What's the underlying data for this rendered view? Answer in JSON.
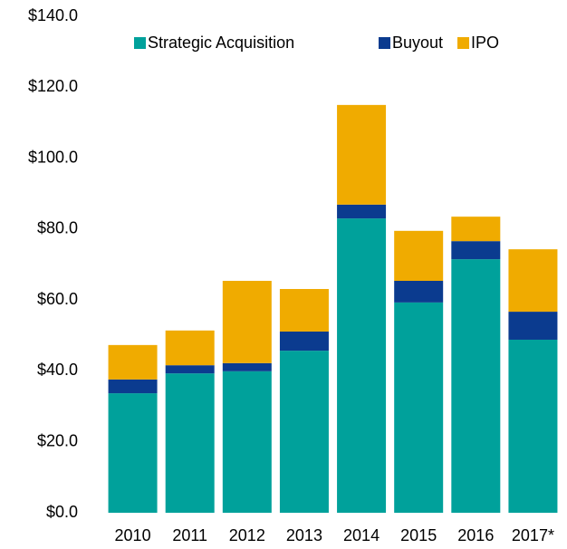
{
  "chart_data": {
    "type": "stacked_bar",
    "categories": [
      "2010",
      "2011",
      "2012",
      "2013",
      "2014",
      "2015",
      "2016",
      "2017*"
    ],
    "series": [
      {
        "name": "Strategic Acquisition",
        "color": "#00a19b",
        "values": [
          33.7,
          39.3,
          39.9,
          45.7,
          83.0,
          59.3,
          71.5,
          48.8
        ]
      },
      {
        "name": "Buyout",
        "color": "#0b3b8f",
        "values": [
          3.9,
          2.3,
          2.3,
          5.4,
          3.9,
          6.1,
          5.1,
          7.9
        ]
      },
      {
        "name": "IPO",
        "color": "#f0ab00",
        "values": [
          9.7,
          9.8,
          23.2,
          12.0,
          28.1,
          14.1,
          6.9,
          17.6
        ]
      }
    ],
    "ylim": [
      0,
      140
    ],
    "yticks": [
      {
        "value": 0,
        "label": "$0.0"
      },
      {
        "value": 20,
        "label": "$20.0"
      },
      {
        "value": 40,
        "label": "$40.0"
      },
      {
        "value": 60,
        "label": "$60.0"
      },
      {
        "value": 80,
        "label": "$80.0"
      },
      {
        "value": 100,
        "label": "$100.0"
      },
      {
        "value": 120,
        "label": "$120.0"
      },
      {
        "value": 140,
        "label": "$140.0"
      }
    ],
    "grid": false,
    "legend": "top"
  }
}
